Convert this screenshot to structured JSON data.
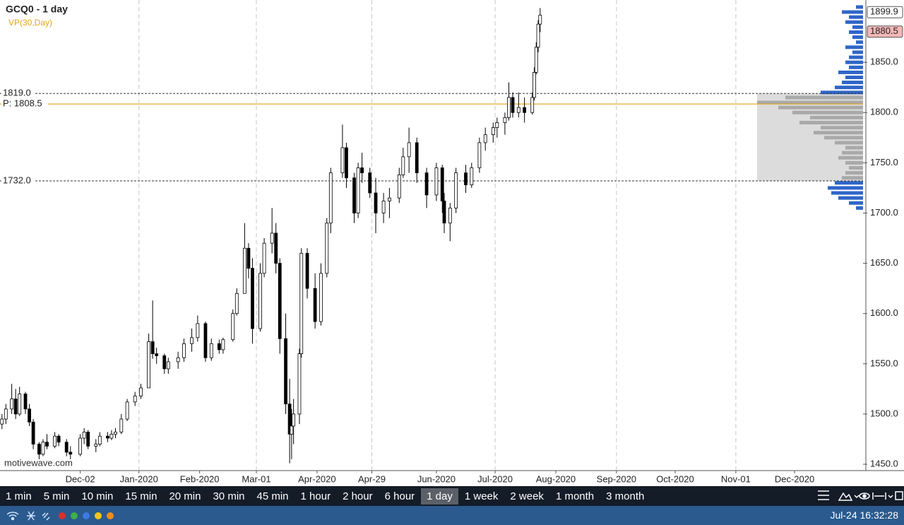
{
  "chart_data": {
    "type": "candlestick",
    "title": "GCQ0 - 1 day",
    "subtitle": "VP(30,Day)",
    "watermark": "motivewave.com",
    "xlim": [
      "2019-10-22",
      "2021-01-05"
    ],
    "xticks": [
      {
        "value": "2019-12-02",
        "label": "Dec-02"
      },
      {
        "value": "2020-01-01",
        "label": "Jan-2020"
      },
      {
        "value": "2020-02-01",
        "label": "Feb-2020"
      },
      {
        "value": "2020-03-01",
        "label": "Mar-01"
      },
      {
        "value": "2020-04-01",
        "label": "Apr-2020"
      },
      {
        "value": "2020-04-29",
        "label": "Apr-29"
      },
      {
        "value": "2020-06-01",
        "label": "Jun-2020"
      },
      {
        "value": "2020-07-01",
        "label": "Jul-2020"
      },
      {
        "value": "2020-08-01",
        "label": "Aug-2020"
      },
      {
        "value": "2020-09-01",
        "label": "Sep-2020"
      },
      {
        "value": "2020-10-01",
        "label": "Oct-2020"
      },
      {
        "value": "2020-11-01",
        "label": "Nov-01"
      },
      {
        "value": "2020-12-01",
        "label": "Dec-2020"
      }
    ],
    "ylim": [
      1444.4,
      1912
    ],
    "yticks": [
      {
        "value": 1450,
        "label": "1450.0"
      },
      {
        "value": 1500,
        "label": "1500.0"
      },
      {
        "value": 1550,
        "label": "1550.0"
      },
      {
        "value": 1600,
        "label": "1600.0"
      },
      {
        "value": 1650,
        "label": "1650.0"
      },
      {
        "value": 1700,
        "label": "1700.0"
      },
      {
        "value": 1750,
        "label": "1750.0"
      },
      {
        "value": 1800,
        "label": "1800.0"
      },
      {
        "value": 1850,
        "label": "1850.0"
      }
    ],
    "grid": true,
    "price_labels": [
      {
        "value": 1899.9,
        "label": "1899.9",
        "color": "#ffffff"
      },
      {
        "value": 1880.5,
        "label": "1880.5",
        "color": "#f4b6b6"
      }
    ],
    "value_area": [
      {
        "value": 1819.0,
        "label": "1819.0"
      },
      {
        "value": 1732.0,
        "label": "1732.0"
      }
    ],
    "poc": {
      "value": 1808.5,
      "label": "P: 1808.5",
      "color": "#e8a317"
    },
    "x": [
      "2019-10-23",
      "2019-10-25",
      "2019-10-28",
      "2019-10-30",
      "2019-11-01",
      "2019-11-04",
      "2019-11-06",
      "2019-11-08",
      "2019-11-11",
      "2019-11-13",
      "2019-11-15",
      "2019-11-19",
      "2019-11-21",
      "2019-11-25",
      "2019-11-27",
      "2019-12-02",
      "2019-12-04",
      "2019-12-06",
      "2019-12-10",
      "2019-12-12",
      "2019-12-16",
      "2019-12-18",
      "2019-12-20",
      "2019-12-23",
      "2019-12-26",
      "2019-12-30",
      "2020-01-02",
      "2020-01-06",
      "2020-01-08",
      "2020-01-10",
      "2020-01-14",
      "2020-01-16",
      "2020-01-21",
      "2020-01-24",
      "2020-01-28",
      "2020-01-31",
      "2020-02-04",
      "2020-02-07",
      "2020-02-11",
      "2020-02-13",
      "2020-02-18",
      "2020-02-20",
      "2020-02-24",
      "2020-02-26",
      "2020-02-28",
      "2020-03-03",
      "2020-03-05",
      "2020-03-09",
      "2020-03-11",
      "2020-03-13",
      "2020-03-16",
      "2020-03-18",
      "2020-03-19",
      "2020-03-20",
      "2020-03-23",
      "2020-03-24",
      "2020-03-27",
      "2020-03-31",
      "2020-04-03",
      "2020-04-06",
      "2020-04-08",
      "2020-04-14",
      "2020-04-16",
      "2020-04-20",
      "2020-04-22",
      "2020-04-24",
      "2020-04-28",
      "2020-05-01",
      "2020-05-05",
      "2020-05-08",
      "2020-05-13",
      "2020-05-15",
      "2020-05-18",
      "2020-05-22",
      "2020-05-27",
      "2020-06-01",
      "2020-06-04",
      "2020-06-05",
      "2020-06-08",
      "2020-06-11",
      "2020-06-16",
      "2020-06-19",
      "2020-06-23",
      "2020-06-26",
      "2020-06-30",
      "2020-07-02",
      "2020-07-06",
      "2020-07-08",
      "2020-07-10",
      "2020-07-13",
      "2020-07-16",
      "2020-07-20",
      "2020-07-21",
      "2020-07-22",
      "2020-07-23",
      "2020-07-24"
    ],
    "open": [
      1490,
      1495,
      1505,
      1515,
      1500,
      1520,
      1505,
      1492,
      1470,
      1460,
      1472,
      1468,
      1478,
      1472,
      1462,
      1460,
      1476,
      1482,
      1468,
      1470,
      1478,
      1476,
      1480,
      1482,
      1495,
      1512,
      1518,
      1526,
      1572,
      1560,
      1558,
      1545,
      1552,
      1556,
      1570,
      1576,
      1590,
      1556,
      1570,
      1564,
      1574,
      1600,
      1620,
      1665,
      1645,
      1585,
      1640,
      1670,
      1680,
      1650,
      1575,
      1510,
      1480,
      1488,
      1500,
      1560,
      1660,
      1625,
      1592,
      1640,
      1690,
      1740,
      1765,
      1735,
      1700,
      1745,
      1740,
      1720,
      1700,
      1712,
      1715,
      1738,
      1756,
      1770,
      1740,
      1718,
      1745,
      1712,
      1690,
      1705,
      1740,
      1728,
      1745,
      1770,
      1778,
      1785,
      1790,
      1795,
      1815,
      1800,
      1805,
      1800,
      1815,
      1840,
      1865,
      1888
    ],
    "high": [
      1500,
      1510,
      1530,
      1525,
      1527,
      1522,
      1510,
      1495,
      1472,
      1475,
      1480,
      1482,
      1480,
      1475,
      1468,
      1480,
      1486,
      1484,
      1475,
      1482,
      1482,
      1484,
      1486,
      1500,
      1515,
      1522,
      1530,
      1580,
      1613,
      1566,
      1560,
      1556,
      1562,
      1575,
      1585,
      1598,
      1592,
      1575,
      1574,
      1576,
      1604,
      1625,
      1690,
      1670,
      1655,
      1650,
      1675,
      1705,
      1690,
      1655,
      1600,
      1535,
      1505,
      1515,
      1565,
      1665,
      1665,
      1640,
      1650,
      1695,
      1745,
      1788,
      1770,
      1740,
      1750,
      1760,
      1745,
      1735,
      1720,
      1725,
      1745,
      1765,
      1785,
      1775,
      1745,
      1750,
      1748,
      1720,
      1710,
      1745,
      1748,
      1750,
      1775,
      1785,
      1790,
      1795,
      1800,
      1830,
      1820,
      1820,
      1815,
      1820,
      1845,
      1870,
      1892,
      1904
    ],
    "low": [
      1485,
      1490,
      1500,
      1495,
      1498,
      1500,
      1488,
      1465,
      1455,
      1458,
      1465,
      1466,
      1468,
      1458,
      1455,
      1458,
      1470,
      1465,
      1462,
      1468,
      1472,
      1474,
      1476,
      1480,
      1493,
      1508,
      1515,
      1526,
      1555,
      1550,
      1540,
      1540,
      1545,
      1552,
      1562,
      1572,
      1552,
      1553,
      1560,
      1560,
      1572,
      1598,
      1620,
      1635,
      1570,
      1582,
      1636,
      1660,
      1640,
      1560,
      1500,
      1451,
      1455,
      1470,
      1490,
      1556,
      1615,
      1585,
      1588,
      1636,
      1680,
      1735,
      1725,
      1690,
      1695,
      1730,
      1715,
      1680,
      1690,
      1695,
      1710,
      1735,
      1740,
      1730,
      1705,
      1712,
      1700,
      1680,
      1672,
      1700,
      1720,
      1725,
      1740,
      1762,
      1770,
      1775,
      1778,
      1792,
      1795,
      1795,
      1790,
      1798,
      1812,
      1838,
      1860,
      1880
    ],
    "close": [
      1495,
      1505,
      1515,
      1500,
      1520,
      1505,
      1492,
      1470,
      1460,
      1472,
      1468,
      1478,
      1472,
      1462,
      1460,
      1476,
      1482,
      1468,
      1470,
      1478,
      1476,
      1480,
      1482,
      1495,
      1512,
      1518,
      1526,
      1572,
      1560,
      1558,
      1545,
      1552,
      1556,
      1570,
      1576,
      1590,
      1556,
      1570,
      1564,
      1574,
      1600,
      1620,
      1665,
      1645,
      1585,
      1640,
      1670,
      1680,
      1650,
      1575,
      1510,
      1480,
      1488,
      1500,
      1560,
      1660,
      1625,
      1592,
      1640,
      1690,
      1740,
      1765,
      1735,
      1700,
      1745,
      1740,
      1720,
      1700,
      1712,
      1715,
      1738,
      1756,
      1770,
      1740,
      1718,
      1745,
      1712,
      1690,
      1705,
      1740,
      1728,
      1745,
      1770,
      1778,
      1785,
      1790,
      1795,
      1815,
      1800,
      1805,
      1800,
      1815,
      1840,
      1865,
      1888,
      1897
    ],
    "volume_profile": {
      "color": "#2f66c8",
      "value_area_color": "#a9a9a9",
      "prices": [
        1705,
        1710,
        1715,
        1720,
        1725,
        1730,
        1735,
        1740,
        1745,
        1750,
        1755,
        1760,
        1765,
        1770,
        1775,
        1780,
        1785,
        1790,
        1795,
        1800,
        1805,
        1810,
        1815,
        1820,
        1825,
        1830,
        1835,
        1840,
        1845,
        1850,
        1855,
        1860,
        1865,
        1870,
        1875,
        1880,
        1885,
        1890,
        1895,
        1900,
        1905
      ],
      "volumes": [
        10,
        20,
        35,
        45,
        50,
        40,
        30,
        25,
        20,
        25,
        35,
        30,
        25,
        40,
        55,
        70,
        60,
        90,
        75,
        100,
        120,
        150,
        110,
        60,
        40,
        30,
        25,
        35,
        20,
        25,
        20,
        15,
        25,
        10,
        15,
        20,
        15,
        25,
        20,
        30,
        10
      ]
    }
  },
  "toolbar": {
    "timeframes": [
      "1 min",
      "5 min",
      "10 min",
      "15 min",
      "20 min",
      "30 min",
      "45 min",
      "1 hour",
      "2 hour",
      "6 hour",
      "1 day",
      "1 week",
      "2 week",
      "1 month",
      "3 month"
    ],
    "selected": 10
  },
  "status_bar": {
    "time": "Jul-24 16:32:28"
  }
}
